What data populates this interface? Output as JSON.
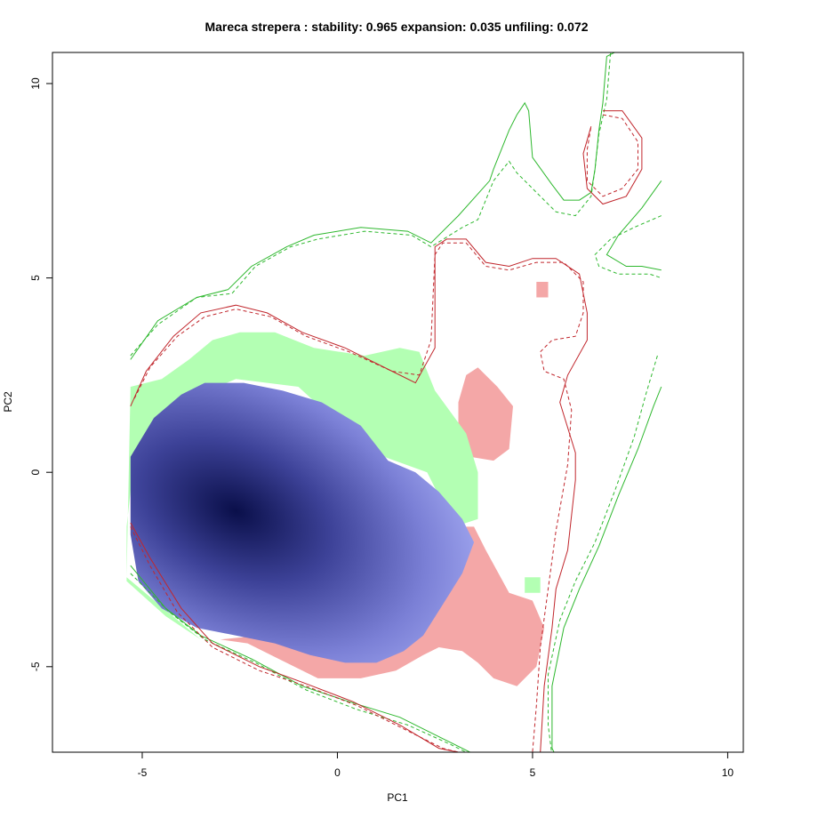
{
  "chart_data": {
    "type": "niche-overlap-plot",
    "title": "Mareca strepera : stability: 0.965 expansion: 0.035 unfiling: 0.072",
    "xlabel": "PC1",
    "ylabel": "PC2",
    "xlim": [
      -7.3,
      10.4
    ],
    "ylim": [
      -7.2,
      10.8
    ],
    "x_ticks": [
      -5,
      0,
      5,
      10
    ],
    "y_ticks": [
      -5,
      0,
      5,
      10
    ],
    "x_tick_labels": [
      "-5",
      "0",
      "5",
      "10"
    ],
    "y_tick_labels": [
      "-5",
      "0",
      "5",
      "10"
    ],
    "colors": {
      "unfilling": "#f4a7a7",
      "expansion": "#b3ffb3",
      "stability_low": "#aab0f6",
      "stability_high": "#0a0f4a",
      "native_env_contour": "#c1272d",
      "invaded_env_contour": "#2eb82e"
    },
    "density_peak": {
      "x": -2.6,
      "y": -1.0
    },
    "regions": {
      "unfilling": [
        [
          [
            3.5,
            -1.4
          ],
          [
            3.8,
            -2.0
          ],
          [
            4.4,
            -3.1
          ],
          [
            5.0,
            -3.3
          ],
          [
            5.3,
            -4.0
          ],
          [
            5.1,
            -5.0
          ],
          [
            4.6,
            -5.5
          ],
          [
            4.0,
            -5.3
          ],
          [
            3.6,
            -4.9
          ],
          [
            3.2,
            -4.6
          ],
          [
            2.6,
            -4.5
          ],
          [
            2.2,
            -4.7
          ],
          [
            1.5,
            -5.1
          ],
          [
            0.6,
            -5.3
          ],
          [
            -0.5,
            -5.3
          ],
          [
            -1.5,
            -4.8
          ],
          [
            -2.3,
            -4.4
          ],
          [
            -3.0,
            -4.3
          ],
          [
            -2.0,
            -4.2
          ],
          [
            3.0,
            -1.4
          ]
        ],
        [
          [
            3.3,
            2.5
          ],
          [
            3.6,
            2.7
          ],
          [
            4.1,
            2.2
          ],
          [
            4.5,
            1.7
          ],
          [
            4.4,
            0.6
          ],
          [
            4.0,
            0.3
          ],
          [
            3.4,
            0.4
          ],
          [
            3.1,
            0.9
          ],
          [
            3.1,
            1.8
          ]
        ],
        [
          [
            5.1,
            4.9
          ],
          [
            5.4,
            4.9
          ],
          [
            5.4,
            4.5
          ],
          [
            5.1,
            4.5
          ]
        ]
      ],
      "expansion": [
        [
          [
            -5.3,
            2.2
          ],
          [
            -4.5,
            2.4
          ],
          [
            -3.8,
            2.9
          ],
          [
            -3.2,
            3.4
          ],
          [
            -2.5,
            3.6
          ],
          [
            -1.6,
            3.6
          ],
          [
            -0.6,
            3.2
          ],
          [
            0.7,
            3.0
          ],
          [
            1.6,
            3.2
          ],
          [
            2.1,
            3.1
          ],
          [
            2.5,
            2.1
          ],
          [
            3.3,
            1.0
          ],
          [
            3.6,
            0.0
          ],
          [
            3.6,
            -1.2
          ],
          [
            3.0,
            -1.4
          ],
          [
            2.3,
            0.0
          ],
          [
            1.2,
            0.4
          ],
          [
            0.3,
            1.0
          ],
          [
            -1.0,
            2.2
          ],
          [
            -2.6,
            2.4
          ],
          [
            -3.8,
            1.9
          ],
          [
            -4.6,
            1.2
          ],
          [
            -5.2,
            0.4
          ],
          [
            -5.4,
            -1.4
          ],
          [
            -5.4,
            -2.8
          ],
          [
            -4.4,
            -3.7
          ],
          [
            -3.5,
            -4.3
          ],
          [
            -5.4,
            -2.7
          ]
        ],
        [
          [
            4.8,
            -2.7
          ],
          [
            5.2,
            -2.7
          ],
          [
            5.2,
            -3.1
          ],
          [
            4.8,
            -3.1
          ]
        ]
      ],
      "stability": [
        [
          [
            -5.3,
            0.4
          ],
          [
            -4.7,
            1.4
          ],
          [
            -4.0,
            2.0
          ],
          [
            -3.4,
            2.3
          ],
          [
            -2.4,
            2.3
          ],
          [
            -1.4,
            2.1
          ],
          [
            -0.4,
            1.8
          ],
          [
            0.6,
            1.2
          ],
          [
            1.3,
            0.3
          ],
          [
            2.0,
            0.0
          ],
          [
            2.6,
            -0.5
          ],
          [
            3.2,
            -1.2
          ],
          [
            3.5,
            -1.8
          ],
          [
            3.2,
            -2.6
          ],
          [
            2.7,
            -3.4
          ],
          [
            2.2,
            -4.2
          ],
          [
            1.7,
            -4.6
          ],
          [
            1.0,
            -4.9
          ],
          [
            0.2,
            -4.9
          ],
          [
            -0.7,
            -4.7
          ],
          [
            -1.6,
            -4.4
          ],
          [
            -2.6,
            -4.2
          ],
          [
            -3.6,
            -4.0
          ],
          [
            -4.5,
            -3.5
          ],
          [
            -5.1,
            -2.8
          ],
          [
            -5.3,
            -1.6
          ]
        ]
      ]
    },
    "contours": {
      "native_solid": [
        [
          [
            -5.3,
            1.7
          ],
          [
            -4.9,
            2.6
          ],
          [
            -4.2,
            3.5
          ],
          [
            -3.5,
            4.1
          ],
          [
            -2.6,
            4.3
          ],
          [
            -1.8,
            4.1
          ],
          [
            -0.9,
            3.6
          ],
          [
            0.2,
            3.2
          ],
          [
            1.4,
            2.6
          ],
          [
            2.0,
            2.3
          ],
          [
            2.5,
            3.2
          ],
          [
            2.5,
            5.8
          ],
          [
            2.8,
            6.0
          ],
          [
            3.3,
            6.0
          ],
          [
            3.8,
            5.4
          ],
          [
            4.4,
            5.3
          ],
          [
            5.0,
            5.5
          ],
          [
            5.6,
            5.5
          ],
          [
            6.2,
            5.1
          ],
          [
            6.4,
            4.1
          ],
          [
            6.4,
            3.4
          ],
          [
            5.9,
            2.5
          ],
          [
            5.7,
            1.8
          ],
          [
            6.1,
            0.5
          ],
          [
            6.1,
            -0.2
          ],
          [
            5.9,
            -2.0
          ],
          [
            5.6,
            -3.0
          ],
          [
            5.5,
            -4.0
          ],
          [
            5.3,
            -5.5
          ],
          [
            5.2,
            -7.2
          ]
        ],
        [
          [
            -5.3,
            -1.3
          ],
          [
            -4.8,
            -2.2
          ],
          [
            -4.0,
            -3.5
          ],
          [
            -3.2,
            -4.4
          ],
          [
            -2.0,
            -5.0
          ],
          [
            -0.9,
            -5.4
          ],
          [
            0.4,
            -5.9
          ],
          [
            1.6,
            -6.5
          ],
          [
            2.6,
            -7.1
          ],
          [
            3.6,
            -7.3
          ]
        ],
        [
          [
            6.8,
            9.3
          ],
          [
            7.3,
            9.3
          ],
          [
            7.8,
            8.6
          ],
          [
            7.8,
            7.8
          ],
          [
            7.4,
            7.1
          ],
          [
            6.8,
            6.9
          ],
          [
            6.4,
            7.3
          ],
          [
            6.3,
            8.2
          ],
          [
            6.5,
            8.9
          ]
        ]
      ],
      "native_dashed": [
        [
          [
            -5.2,
            1.9
          ],
          [
            -4.8,
            2.7
          ],
          [
            -4.1,
            3.5
          ],
          [
            -3.4,
            4.0
          ],
          [
            -2.6,
            4.2
          ],
          [
            -1.7,
            4.0
          ],
          [
            -0.8,
            3.5
          ],
          [
            0.3,
            3.1
          ],
          [
            1.4,
            2.6
          ],
          [
            2.1,
            2.5
          ],
          [
            2.4,
            3.4
          ],
          [
            2.5,
            5.6
          ],
          [
            2.7,
            5.9
          ],
          [
            3.3,
            5.9
          ],
          [
            3.8,
            5.3
          ],
          [
            4.4,
            5.2
          ],
          [
            5.1,
            5.4
          ],
          [
            5.8,
            5.4
          ],
          [
            6.3,
            4.9
          ],
          [
            6.3,
            4.1
          ],
          [
            6.1,
            3.5
          ],
          [
            5.5,
            3.4
          ],
          [
            5.2,
            3.1
          ],
          [
            5.3,
            2.6
          ],
          [
            5.8,
            2.4
          ],
          [
            6.0,
            1.6
          ],
          [
            5.9,
            0.2
          ],
          [
            5.6,
            -1.5
          ],
          [
            5.4,
            -3.0
          ],
          [
            5.2,
            -4.5
          ],
          [
            5.1,
            -6.0
          ],
          [
            5.0,
            -7.2
          ]
        ],
        [
          [
            -5.3,
            -1.4
          ],
          [
            -4.8,
            -2.4
          ],
          [
            -4.1,
            -3.6
          ],
          [
            -3.2,
            -4.5
          ],
          [
            -2.0,
            -5.1
          ],
          [
            -0.8,
            -5.5
          ],
          [
            0.5,
            -6.0
          ],
          [
            1.7,
            -6.6
          ],
          [
            2.7,
            -7.1
          ],
          [
            3.5,
            -7.3
          ]
        ],
        [
          [
            6.8,
            9.2
          ],
          [
            7.3,
            9.1
          ],
          [
            7.7,
            8.5
          ],
          [
            7.7,
            7.8
          ],
          [
            7.3,
            7.3
          ],
          [
            6.8,
            7.1
          ],
          [
            6.4,
            7.5
          ],
          [
            6.4,
            8.3
          ],
          [
            6.5,
            8.9
          ]
        ]
      ],
      "invaded_solid": [
        [
          [
            -5.3,
            2.9
          ],
          [
            -4.6,
            3.9
          ],
          [
            -3.6,
            4.5
          ],
          [
            -2.8,
            4.7
          ],
          [
            -2.2,
            5.3
          ],
          [
            -1.3,
            5.8
          ],
          [
            -0.6,
            6.1
          ],
          [
            0.6,
            6.3
          ],
          [
            1.8,
            6.2
          ],
          [
            2.4,
            5.9
          ],
          [
            3.1,
            6.6
          ],
          [
            3.9,
            7.5
          ],
          [
            4.0,
            7.8
          ],
          [
            4.4,
            8.8
          ],
          [
            4.6,
            9.2
          ],
          [
            4.8,
            9.5
          ],
          [
            4.9,
            9.3
          ],
          [
            5.0,
            8.1
          ],
          [
            5.5,
            7.4
          ],
          [
            5.8,
            7.0
          ],
          [
            6.2,
            7.0
          ],
          [
            6.5,
            7.2
          ],
          [
            6.6,
            7.8
          ],
          [
            6.7,
            8.8
          ],
          [
            6.8,
            9.5
          ],
          [
            6.9,
            10.7
          ],
          [
            7.1,
            10.8
          ]
        ],
        [
          [
            8.3,
            7.5
          ],
          [
            7.8,
            6.8
          ],
          [
            7.2,
            6.1
          ],
          [
            6.9,
            5.6
          ],
          [
            7.4,
            5.3
          ],
          [
            7.8,
            5.3
          ],
          [
            8.3,
            5.2
          ]
        ],
        [
          [
            8.3,
            2.2
          ],
          [
            8.1,
            1.7
          ],
          [
            7.7,
            0.6
          ],
          [
            7.2,
            -0.6
          ],
          [
            6.7,
            -1.9
          ],
          [
            6.2,
            -3.0
          ],
          [
            5.8,
            -4.0
          ],
          [
            5.5,
            -5.5
          ],
          [
            5.5,
            -7.1
          ],
          [
            5.6,
            -7.3
          ]
        ],
        [
          [
            -5.3,
            -2.4
          ],
          [
            -4.4,
            -3.5
          ],
          [
            -3.5,
            -4.2
          ],
          [
            -2.2,
            -4.8
          ],
          [
            -0.9,
            -5.5
          ],
          [
            0.3,
            -5.9
          ],
          [
            1.6,
            -6.3
          ],
          [
            2.8,
            -6.9
          ],
          [
            3.6,
            -7.3
          ]
        ]
      ],
      "invaded_dashed": [
        [
          [
            -5.3,
            3.0
          ],
          [
            -4.6,
            3.8
          ],
          [
            -3.6,
            4.5
          ],
          [
            -2.7,
            4.6
          ],
          [
            -2.1,
            5.3
          ],
          [
            -1.2,
            5.8
          ],
          [
            -0.5,
            6.0
          ],
          [
            0.7,
            6.2
          ],
          [
            1.9,
            6.1
          ],
          [
            2.4,
            5.8
          ],
          [
            3.2,
            6.3
          ],
          [
            3.6,
            6.5
          ],
          [
            4.0,
            7.5
          ],
          [
            4.4,
            8.0
          ],
          [
            4.6,
            7.7
          ],
          [
            5.1,
            7.2
          ],
          [
            5.6,
            6.7
          ],
          [
            6.1,
            6.6
          ],
          [
            6.5,
            7.1
          ],
          [
            6.6,
            7.8
          ],
          [
            6.7,
            8.7
          ],
          [
            6.9,
            9.6
          ],
          [
            7.0,
            10.8
          ]
        ],
        [
          [
            8.3,
            6.6
          ],
          [
            7.6,
            6.3
          ],
          [
            7.0,
            6.0
          ],
          [
            6.6,
            5.6
          ],
          [
            6.7,
            5.3
          ],
          [
            7.2,
            5.1
          ],
          [
            8.0,
            5.1
          ],
          [
            8.3,
            5.0
          ]
        ],
        [
          [
            8.2,
            3.0
          ],
          [
            7.9,
            2.0
          ],
          [
            7.6,
            0.9
          ],
          [
            7.1,
            -0.5
          ],
          [
            6.6,
            -1.8
          ],
          [
            6.1,
            -2.8
          ],
          [
            5.7,
            -3.8
          ],
          [
            5.4,
            -5.2
          ],
          [
            5.4,
            -6.5
          ],
          [
            5.5,
            -7.3
          ]
        ],
        [
          [
            -5.3,
            -2.6
          ],
          [
            -4.3,
            -3.6
          ],
          [
            -3.4,
            -4.3
          ],
          [
            -2.1,
            -4.9
          ],
          [
            -0.8,
            -5.6
          ],
          [
            0.5,
            -6.1
          ],
          [
            1.8,
            -6.5
          ],
          [
            2.9,
            -7.0
          ],
          [
            3.5,
            -7.3
          ]
        ]
      ]
    }
  }
}
